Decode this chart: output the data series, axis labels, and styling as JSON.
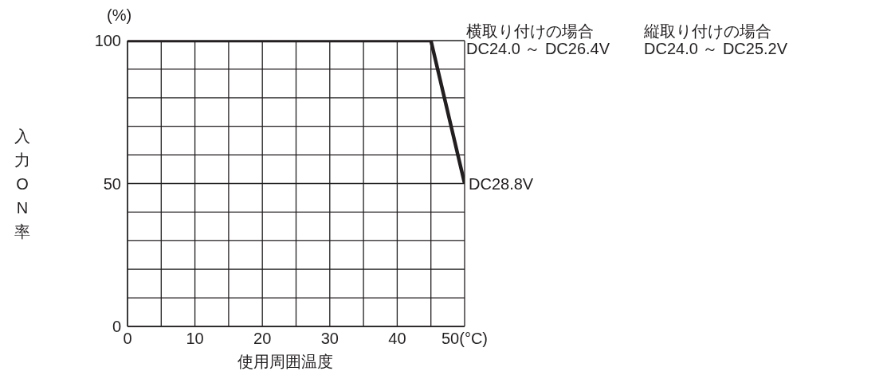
{
  "chart_data": {
    "type": "line",
    "xlabel": "使用周囲温度",
    "ylabel": "入力ON率",
    "x": [
      0,
      45,
      50
    ],
    "series": [
      {
        "color": "#231f20",
        "values": [
          100,
          100,
          50
        ]
      }
    ],
    "xlim": [
      0,
      50
    ],
    "xticks": [
      0,
      {
        "value": 5,
        "label": null
      },
      10,
      {
        "value": 15,
        "label": null
      },
      20,
      {
        "value": 25,
        "label": null
      },
      30,
      {
        "value": 35,
        "label": null
      },
      40,
      {
        "value": 45,
        "label": null
      },
      {
        "value": 50,
        "label": "50(°C)"
      }
    ],
    "ylim": [
      0,
      100
    ],
    "yticks": [
      0,
      {
        "value": 10,
        "label": null
      },
      {
        "value": 20,
        "label": null
      },
      {
        "value": 30,
        "label": null
      },
      {
        "value": 40,
        "label": null
      },
      50,
      {
        "value": 60,
        "label": null
      },
      {
        "value": 70,
        "label": null
      },
      {
        "value": 80,
        "label": null
      },
      {
        "value": 90,
        "label": null
      },
      100
    ],
    "grid": true,
    "marker": "none",
    "line_style": "solid",
    "legend": false,
    "annotations": [
      "(%)",
      "横取り付けの場合",
      "縦取り付けの場合",
      "DC24.0 ～ DC26.4V",
      "DC24.0 ～ DC25.2V",
      {
        "text": "DC28.8V",
        "x": 50,
        "y": 50
      }
    ]
  }
}
